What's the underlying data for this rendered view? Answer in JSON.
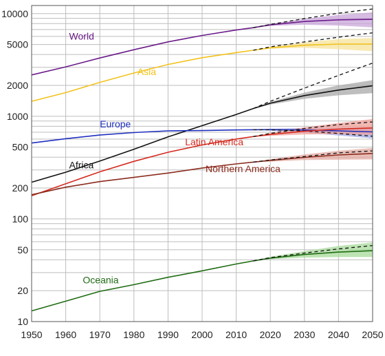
{
  "chart_data": {
    "type": "line",
    "title": "",
    "xlabel": "",
    "ylabel": "",
    "scale_y": "log",
    "xlim": [
      1950,
      2050
    ],
    "ylim": [
      10,
      12000
    ],
    "grid": true,
    "legend": "inline labels",
    "x_ticks": [
      1950,
      1960,
      1970,
      1980,
      1990,
      2000,
      2010,
      2020,
      2030,
      2040,
      2050
    ],
    "x_tick_labels": [
      "1950",
      "1960",
      "1970",
      "1980",
      "1990",
      "2000",
      "2010",
      "2020",
      "2030",
      "2040",
      "2050"
    ],
    "y_ticks": [
      10,
      20,
      50,
      100,
      200,
      500,
      1000,
      2000,
      5000,
      10000
    ],
    "y_tick_labels": [
      "10",
      "20",
      "50",
      "100",
      "200",
      "500",
      "1000",
      "2000",
      "5000",
      "10000"
    ],
    "y_minor_grid": [
      30,
      40,
      60,
      70,
      80,
      90,
      300,
      400,
      600,
      700,
      800,
      900,
      3000,
      4000,
      6000,
      7000,
      8000,
      9000
    ],
    "series": [
      {
        "name": "World",
        "color": "#6a1b8a",
        "band_color": "#c9a6d9",
        "x": [
          1950,
          1960,
          1970,
          1980,
          1990,
          2000,
          2010,
          2015
        ],
        "values": [
          2530,
          3030,
          3700,
          4450,
          5310,
          6130,
          6920,
          7300
        ],
        "projection": {
          "x": [
            2015,
            2020,
            2030,
            2040,
            2050
          ],
          "median": [
            7300,
            7780,
            8380,
            8700,
            8800
          ],
          "lower": [
            7300,
            7600,
            7800,
            7650,
            7350
          ],
          "upper": [
            7300,
            7950,
            8900,
            9700,
            10300
          ],
          "dashed": [
            7300,
            7850,
            8950,
            10100,
            11100
          ]
        }
      },
      {
        "name": "Asia",
        "color": "#f2c21b",
        "band_color": "#f7e39a",
        "x": [
          1950,
          1960,
          1970,
          1980,
          1990,
          2000,
          2010,
          2015
        ],
        "values": [
          1400,
          1700,
          2140,
          2640,
          3200,
          3720,
          4170,
          4400
        ],
        "projection": {
          "x": [
            2015,
            2020,
            2030,
            2040,
            2050
          ],
          "median": [
            4400,
            4650,
            4920,
            5050,
            5050
          ],
          "lower": [
            4400,
            4550,
            4650,
            4500,
            4300
          ],
          "upper": [
            4400,
            4750,
            5250,
            5650,
            5800
          ],
          "dashed": [
            4400,
            4750,
            5300,
            5900,
            6500
          ]
        }
      },
      {
        "name": "Africa",
        "color": "#111111",
        "band_color": "#a8a8a8",
        "x": [
          1950,
          1960,
          1970,
          1980,
          1990,
          2000,
          2010,
          2015
        ],
        "values": [
          228,
          285,
          366,
          478,
          630,
          810,
          1040,
          1190
        ],
        "projection": {
          "x": [
            2015,
            2020,
            2030,
            2040,
            2050
          ],
          "median": [
            1190,
            1340,
            1590,
            1800,
            1980
          ],
          "lower": [
            1190,
            1300,
            1480,
            1600,
            1680
          ],
          "upper": [
            1190,
            1380,
            1700,
            2000,
            2250
          ],
          "dashed": [
            1190,
            1400,
            1880,
            2500,
            3300
          ]
        }
      },
      {
        "name": "Europe",
        "color": "#1f2fbf",
        "band_color": "#9fa6e6",
        "x": [
          1950,
          1960,
          1970,
          1980,
          1990,
          2000,
          2010,
          2015
        ],
        "values": [
          549,
          605,
          657,
          694,
          721,
          726,
          736,
          740
        ],
        "projection": {
          "x": [
            2015,
            2020,
            2030,
            2040,
            2050
          ],
          "median": [
            740,
            742,
            735,
            720,
            705
          ],
          "lower": [
            740,
            725,
            690,
            650,
            610
          ],
          "upper": [
            740,
            755,
            770,
            775,
            780
          ],
          "dashed": [
            740,
            738,
            720,
            680,
            640
          ]
        }
      },
      {
        "name": "Latin America",
        "color": "#d42a1e",
        "band_color": "#f0a09a",
        "x": [
          1950,
          1960,
          1970,
          1980,
          1990,
          2000,
          2010,
          2015
        ],
        "values": [
          168,
          220,
          288,
          364,
          446,
          526,
          600,
          635
        ],
        "projection": {
          "x": [
            2015,
            2020,
            2030,
            2040,
            2050
          ],
          "median": [
            635,
            665,
            715,
            750,
            770
          ],
          "lower": [
            635,
            645,
            665,
            670,
            660
          ],
          "upper": [
            635,
            690,
            780,
            860,
            940
          ],
          "dashed": [
            635,
            680,
            760,
            830,
            880
          ]
        }
      },
      {
        "name": "Northern America",
        "color": "#8b2a1c",
        "band_color": "#e3aaa2",
        "x": [
          1950,
          1960,
          1970,
          1980,
          1990,
          2000,
          2010,
          2015
        ],
        "values": [
          172,
          204,
          231,
          254,
          280,
          313,
          344,
          358
        ],
        "projection": {
          "x": [
            2015,
            2020,
            2030,
            2040,
            2050
          ],
          "median": [
            358,
            372,
            398,
            420,
            434
          ],
          "lower": [
            358,
            362,
            375,
            378,
            380
          ],
          "upper": [
            358,
            382,
            425,
            462,
            490
          ],
          "dashed": [
            358,
            375,
            405,
            440,
            460
          ]
        }
      },
      {
        "name": "Oceania",
        "color": "#1e6b12",
        "band_color": "#a7d99a",
        "x": [
          1950,
          1960,
          1970,
          1980,
          1990,
          2000,
          2010,
          2015
        ],
        "values": [
          12.7,
          15.8,
          19.7,
          22.9,
          27.0,
          31.2,
          36.4,
          39.0
        ],
        "projection": {
          "x": [
            2015,
            2020,
            2030,
            2040,
            2050
          ],
          "median": [
            39.0,
            41.5,
            45.0,
            47.5,
            49.0
          ],
          "lower": [
            39.0,
            40.5,
            42.0,
            42.5,
            42.5
          ],
          "upper": [
            39.0,
            42.8,
            48.5,
            54.5,
            59.0
          ],
          "dashed": [
            39.0,
            42.0,
            46.5,
            51.0,
            55.0
          ]
        }
      }
    ]
  }
}
